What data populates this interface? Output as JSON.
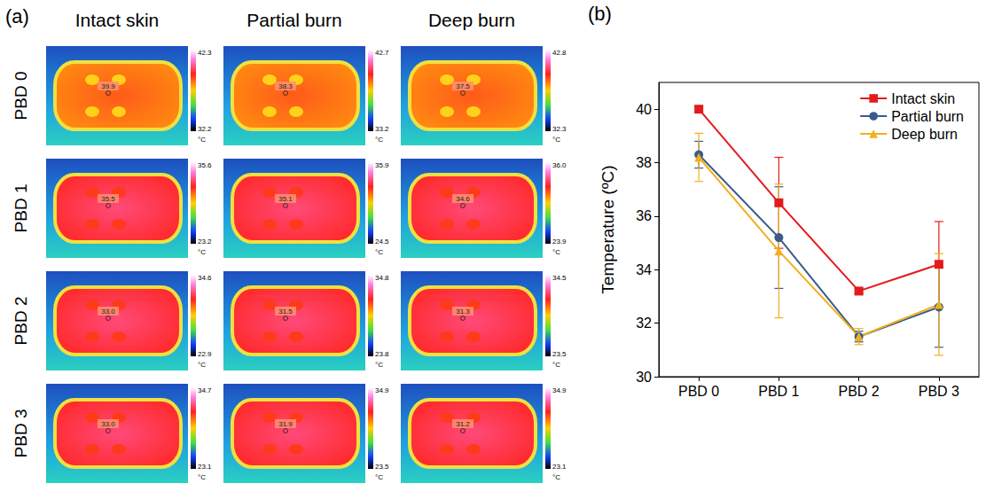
{
  "panel_a": {
    "label": "(a)",
    "columns": [
      "Intact skin",
      "Partial burn",
      "Deep burn"
    ],
    "rows": [
      "PBD 0",
      "PBD 1",
      "PBD 2",
      "PBD 3"
    ],
    "unit": "°C",
    "images": [
      [
        {
          "spot": 39.9,
          "scale_max": 42.3,
          "scale_min": 32.2
        },
        {
          "spot": 38.3,
          "scale_max": 42.7,
          "scale_min": 33.2
        },
        {
          "spot": 37.5,
          "scale_max": 42.8,
          "scale_min": 32.3
        }
      ],
      [
        {
          "spot": 35.5,
          "scale_max": 35.6,
          "scale_min": 23.2
        },
        {
          "spot": 35.1,
          "scale_max": 35.9,
          "scale_min": 24.5
        },
        {
          "spot": 34.6,
          "scale_max": 36.0,
          "scale_min": 23.9
        }
      ],
      [
        {
          "spot": 33.0,
          "scale_max": 34.6,
          "scale_min": 22.9
        },
        {
          "spot": 31.5,
          "scale_max": 34.8,
          "scale_min": 23.8
        },
        {
          "spot": 31.3,
          "scale_max": 34.5,
          "scale_min": 23.5
        }
      ],
      [
        {
          "spot": 33.0,
          "scale_max": 34.7,
          "scale_min": 23.1
        },
        {
          "spot": 31.9,
          "scale_max": 34.9,
          "scale_min": 23.5
        },
        {
          "spot": 31.2,
          "scale_max": 34.9,
          "scale_min": 23.1
        }
      ]
    ]
  },
  "chart_data": {
    "label": "(b)",
    "type": "line",
    "categories": [
      "PBD 0",
      "PBD 1",
      "PBD 2",
      "PBD 3"
    ],
    "y_label": "Temperature (ºC)",
    "ylim": [
      30,
      41
    ],
    "yticks": [
      30,
      32,
      34,
      36,
      38,
      40
    ],
    "grid": false,
    "legend": "upper right",
    "series": [
      {
        "name": "Intact skin",
        "color": "#e41a1c",
        "marker": "square",
        "values": [
          40.0,
          36.5,
          33.2,
          34.2
        ],
        "errors": [
          0.1,
          1.7,
          0.1,
          1.6
        ]
      },
      {
        "name": "Partial burn",
        "color": "#3b5b8c",
        "marker": "circle",
        "values": [
          38.3,
          35.2,
          31.5,
          32.6
        ],
        "errors": [
          0.5,
          1.9,
          0.2,
          1.5
        ]
      },
      {
        "name": "Deep burn",
        "color": "#f2b01e",
        "marker": "triangle",
        "values": [
          38.2,
          34.7,
          31.5,
          32.7
        ],
        "errors": [
          0.9,
          2.5,
          0.3,
          1.9
        ]
      }
    ]
  }
}
